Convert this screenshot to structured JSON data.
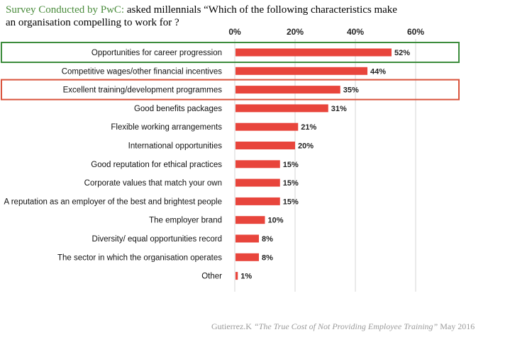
{
  "title": {
    "source": "Survey Conducted by PwC:",
    "question": " asked millennials “Which of the following characteristics make an organisation compelling to work for ?"
  },
  "footer": {
    "author": "Gutierrez.K",
    "work": "“The True Cost of Not Providing Employee Training”",
    "date": "May 2016"
  },
  "chart_data": {
    "type": "bar",
    "orientation": "horizontal",
    "categories": [
      "Opportunities for career progression",
      "Competitive wages/other financial incentives",
      "Excellent training/development programmes",
      "Good benefits packages",
      "Flexible working arrangements",
      "International opportunities",
      "Good reputation for ethical practices",
      "Corporate values that match your own",
      "A reputation as an employer of the best and brightest people",
      "The employer brand",
      "Diversity/ equal opportunities record",
      "The sector in which the organisation operates",
      "Other"
    ],
    "values": [
      52,
      44,
      35,
      31,
      21,
      20,
      15,
      15,
      15,
      10,
      8,
      8,
      1
    ],
    "value_labels": [
      "52%",
      "44%",
      "35%",
      "31%",
      "21%",
      "20%",
      "15%",
      "15%",
      "15%",
      "10%",
      "8%",
      "8%",
      "1%"
    ],
    "xlim": [
      0,
      60
    ],
    "ticks": [
      0,
      20,
      40,
      60
    ],
    "tick_labels": [
      "0%",
      "20%",
      "40%",
      "60%"
    ],
    "grid": true,
    "bar_color": "#e8453c",
    "highlights": [
      {
        "category": "Opportunities for career progression",
        "color": "#3c8c3c"
      },
      {
        "category": "Excellent training/development programmes",
        "color": "#d9533c"
      }
    ]
  }
}
